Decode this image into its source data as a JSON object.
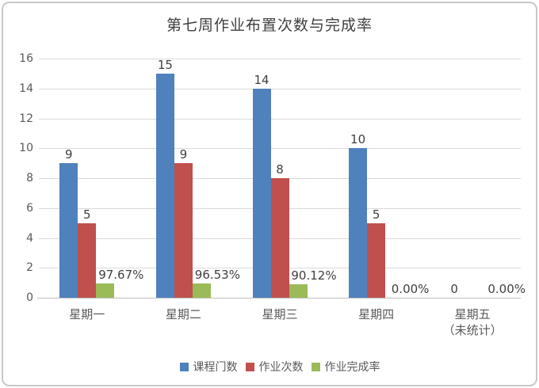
{
  "chart_data": {
    "type": "bar",
    "title": "第七周作业布置次数与完成率",
    "categories": [
      {
        "label": "星期一",
        "sublabel": ""
      },
      {
        "label": "星期二",
        "sublabel": ""
      },
      {
        "label": "星期三",
        "sublabel": ""
      },
      {
        "label": "星期四",
        "sublabel": ""
      },
      {
        "label": "星期五",
        "sublabel": "（未统计）"
      }
    ],
    "series": [
      {
        "key": "courses",
        "name": "课程门数",
        "color": "#4F81BD",
        "values": [
          9,
          15,
          14,
          10,
          0
        ],
        "data_labels": [
          "9",
          "15",
          "14",
          "10",
          "0"
        ]
      },
      {
        "key": "assignments",
        "name": "作业次数",
        "color": "#C0504D",
        "values": [
          5,
          9,
          8,
          5,
          0
        ],
        "data_labels": [
          "5",
          "9",
          "8",
          "5",
          ""
        ]
      },
      {
        "key": "completion-rate",
        "name": "作业完成率",
        "color": "#9BBB59",
        "values_percent": [
          97.67,
          96.53,
          90.12,
          0,
          0
        ],
        "plotted_as_fraction_on_left_axis": true,
        "data_labels": [
          "97.67%",
          "96.53%",
          "90.12%",
          "0.00%",
          "0.00%"
        ]
      }
    ],
    "ylim": [
      0,
      16
    ],
    "yticks": [
      0,
      2,
      4,
      6,
      8,
      10,
      12,
      14,
      16
    ],
    "grid": true,
    "legend_position": "bottom",
    "colors": {
      "grid": "#D9D9D9",
      "axis": "#BFBFBF",
      "tick_text": "#595959",
      "label_text": "#3F3F3F",
      "frame_border": "#C8C8C8"
    }
  }
}
